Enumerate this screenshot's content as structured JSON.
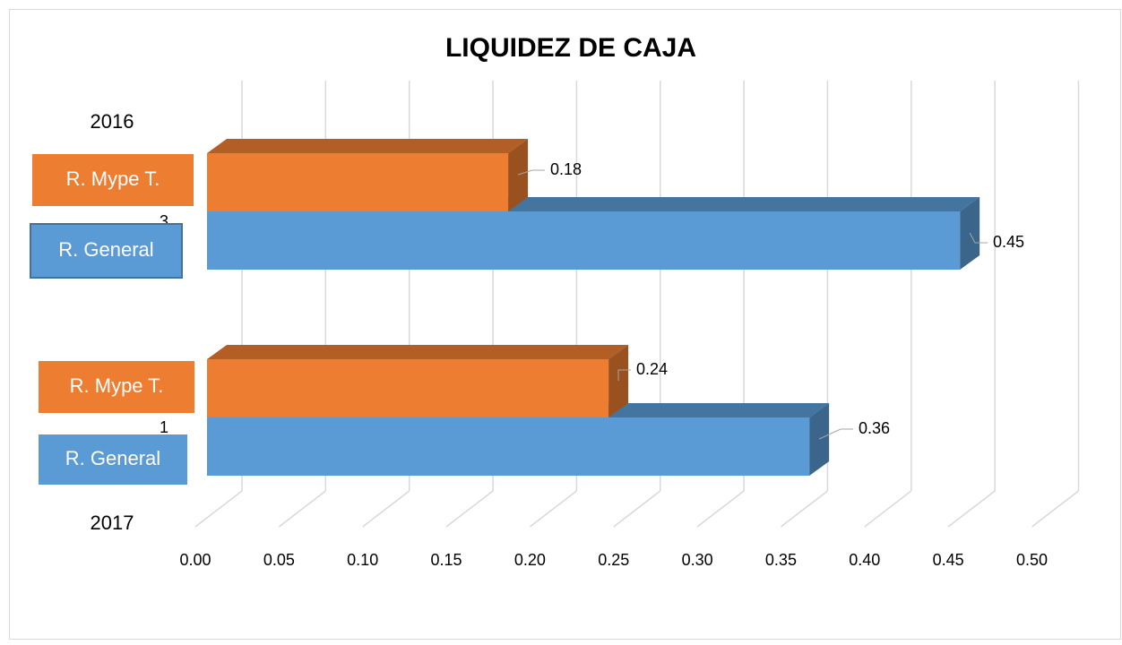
{
  "chart_data": {
    "type": "bar3d_horizontal",
    "title": "LIQUIDEZ DE CAJA",
    "categories": [
      "3",
      "1"
    ],
    "series": [
      {
        "name": "R. Mype T.",
        "color": "#ed7d31",
        "values": [
          0.18,
          0.24
        ]
      },
      {
        "name": "R. General",
        "color": "#5b9bd5",
        "values": [
          0.45,
          0.36
        ]
      }
    ],
    "xlim": [
      0,
      0.5
    ],
    "xticks": [
      {
        "value": 0,
        "label": "0.00"
      },
      {
        "value": 0.05,
        "label": "0.05"
      },
      {
        "value": 0.1,
        "label": "0.10"
      },
      {
        "value": 0.15,
        "label": "0.15"
      },
      {
        "value": 0.2,
        "label": "0.20"
      },
      {
        "value": 0.25,
        "label": "0.25"
      },
      {
        "value": 0.3,
        "label": "0.30"
      },
      {
        "value": 0.35,
        "label": "0.35"
      },
      {
        "value": 0.4,
        "label": "0.40"
      },
      {
        "value": 0.45,
        "label": "0.45"
      },
      {
        "value": 0.5,
        "label": "0.50"
      }
    ],
    "grid": true,
    "annotations": [
      "2016",
      "R. Mype T.",
      "R. General",
      "2017",
      "R. Mype T.",
      "R. General"
    ]
  }
}
